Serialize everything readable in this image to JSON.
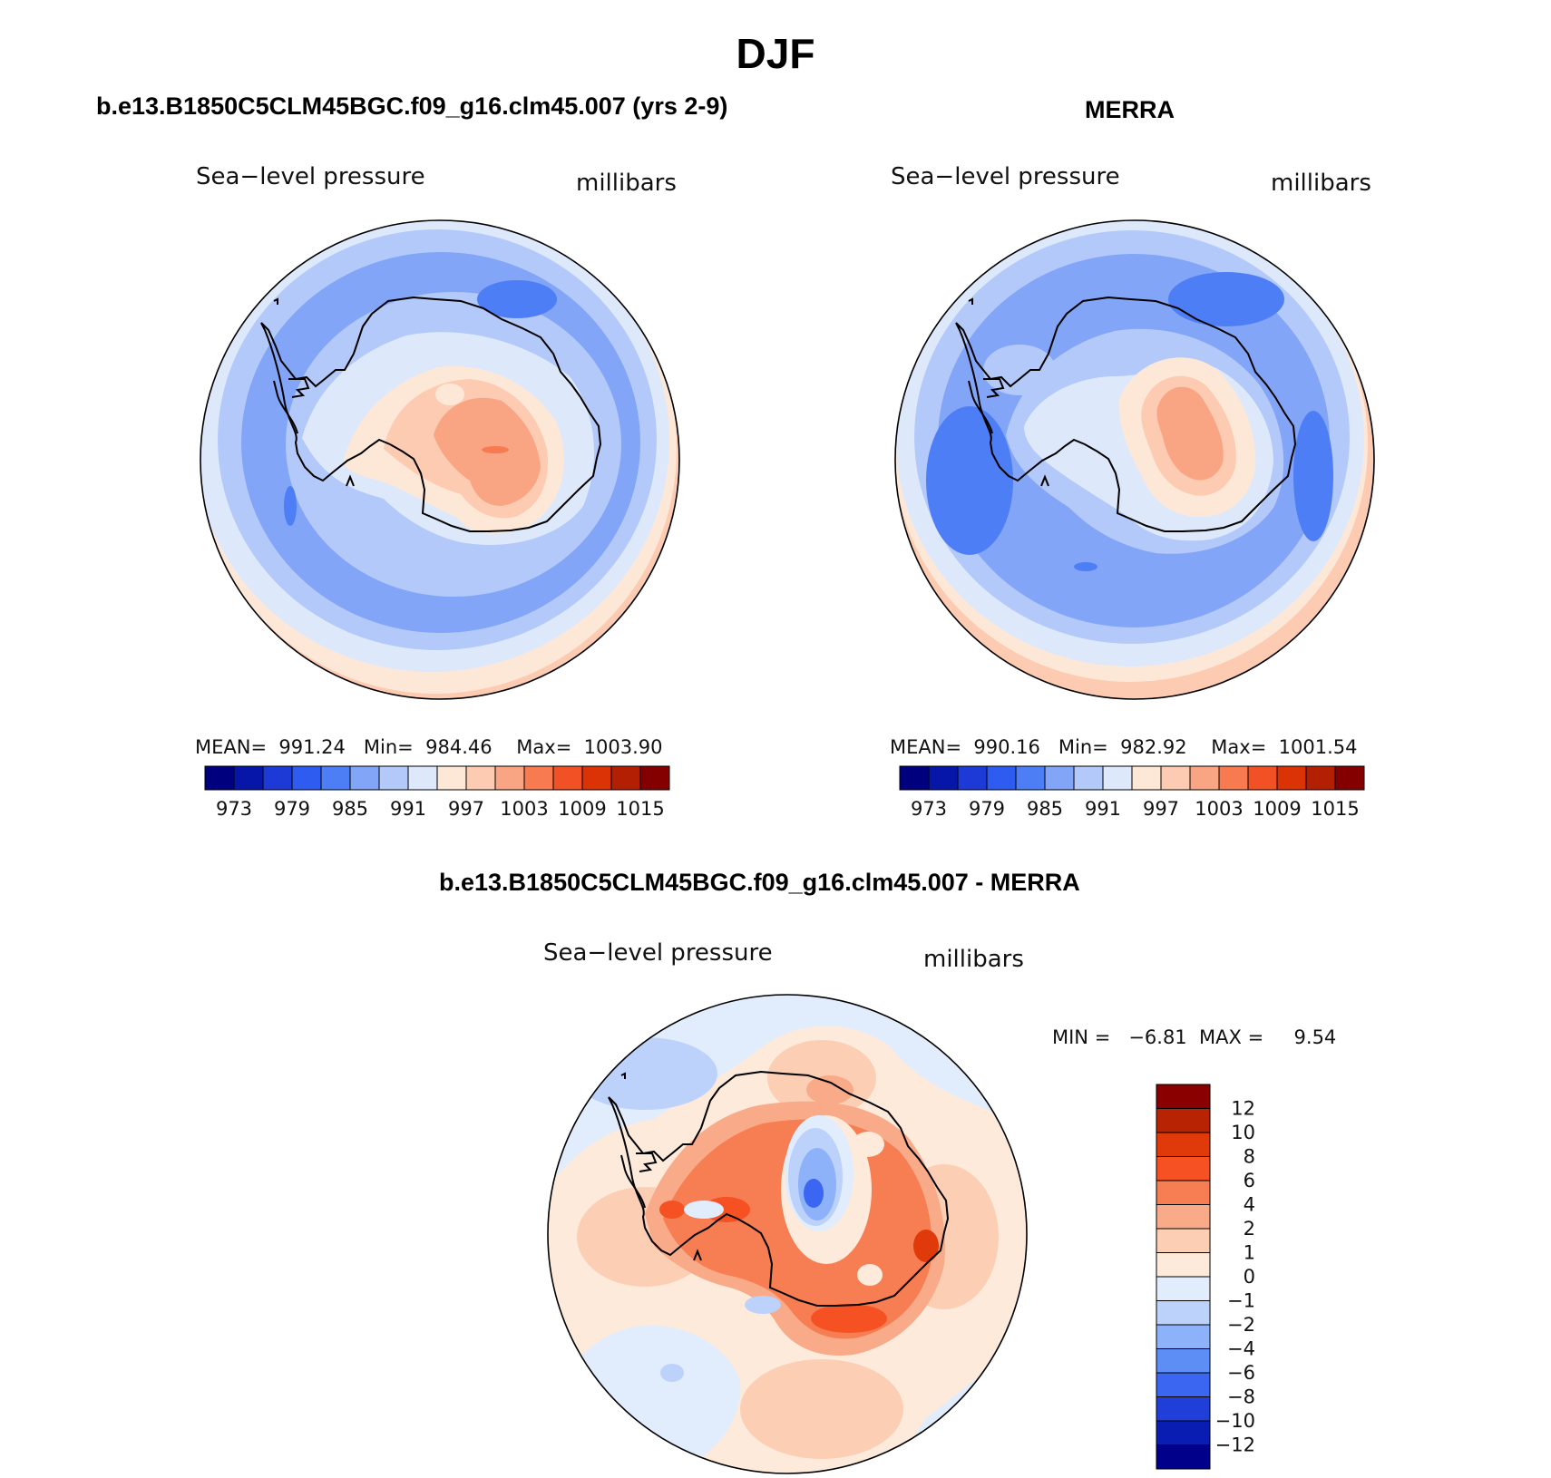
{
  "page": {
    "title": "DJF"
  },
  "panels": {
    "model": {
      "title": "b.e13.B1850C5CLM45BGC.f09_g16.clm45.007 (yrs 2-9)",
      "variable": "Sea−level pressure",
      "units": "millibars",
      "stats": "MEAN=  991.24   Min=  984.46    Max=  1003.90"
    },
    "obs": {
      "title": "MERRA",
      "variable": "Sea−level pressure",
      "units": "millibars",
      "stats": "MEAN=  990.16   Min=  982.92    Max=  1001.54"
    },
    "diff": {
      "title": "b.e13.B1850C5CLM45BGC.f09_g16.clm45.007 - MERRA",
      "variable": "Sea−level pressure",
      "units": "millibars",
      "stats": "MIN =   −6.81  MAX =     9.54"
    }
  },
  "colors": {
    "field_scale": [
      "#00007f",
      "#0516a8",
      "#1d3ad6",
      "#2f5cf0",
      "#4e7ef5",
      "#82a5f8",
      "#b3c9f9",
      "#dde9fb",
      "#fde8d8",
      "#fccbb1",
      "#f9a584",
      "#f77a50",
      "#f25025",
      "#db3206",
      "#b21f03",
      "#840000"
    ],
    "diff_scale": [
      "#00008a",
      "#0a1db2",
      "#1f3fd8",
      "#3a66f2",
      "#5c8ef6",
      "#8eb2f9",
      "#bcd2fb",
      "#e1edfc",
      "#fdeadb",
      "#fccfb5",
      "#f9aa88",
      "#f77d52",
      "#f55123",
      "#e03a0a",
      "#b82403",
      "#8a0000"
    ],
    "land_outline": "#000000"
  },
  "chart_data": [
    {
      "type": "heatmap",
      "title": "b.e13.B1850C5CLM45BGC.f09_g16.clm45.007 (yrs 2-9)",
      "subtitle": "Sea−level pressure",
      "units": "millibars",
      "projection": "south-polar stereographic",
      "mean": 991.24,
      "min": 984.46,
      "max": 1003.9,
      "colorbar": {
        "orientation": "horizontal",
        "levels": [
          970,
          973,
          976,
          979,
          982,
          985,
          988,
          991,
          994,
          997,
          1000,
          1003,
          1006,
          1009,
          1012,
          1015
        ],
        "tick_labels": [
          "973",
          "979",
          "985",
          "991",
          "997",
          "1003",
          "1009",
          "1015"
        ]
      }
    },
    {
      "type": "heatmap",
      "title": "MERRA",
      "subtitle": "Sea−level pressure",
      "units": "millibars",
      "projection": "south-polar stereographic",
      "mean": 990.16,
      "min": 982.92,
      "max": 1001.54,
      "colorbar": {
        "orientation": "horizontal",
        "levels": [
          970,
          973,
          976,
          979,
          982,
          985,
          988,
          991,
          994,
          997,
          1000,
          1003,
          1006,
          1009,
          1012,
          1015
        ],
        "tick_labels": [
          "973",
          "979",
          "985",
          "991",
          "997",
          "1003",
          "1009",
          "1015"
        ]
      }
    },
    {
      "type": "heatmap",
      "title": "b.e13.B1850C5CLM45BGC.f09_g16.clm45.007 - MERRA",
      "subtitle": "Sea−level pressure",
      "units": "millibars",
      "projection": "south-polar stereographic",
      "min": -6.81,
      "max": 9.54,
      "colorbar": {
        "orientation": "vertical",
        "levels": [
          -12,
          -10,
          -8,
          -6,
          -4,
          -2,
          -1,
          0,
          1,
          2,
          4,
          6,
          8,
          10,
          12
        ],
        "tick_labels": [
          "12",
          "10",
          "8",
          "6",
          "4",
          "2",
          "1",
          "0",
          "−1",
          "−2",
          "−4",
          "−6",
          "−8",
          "−10",
          "−12"
        ]
      }
    }
  ]
}
